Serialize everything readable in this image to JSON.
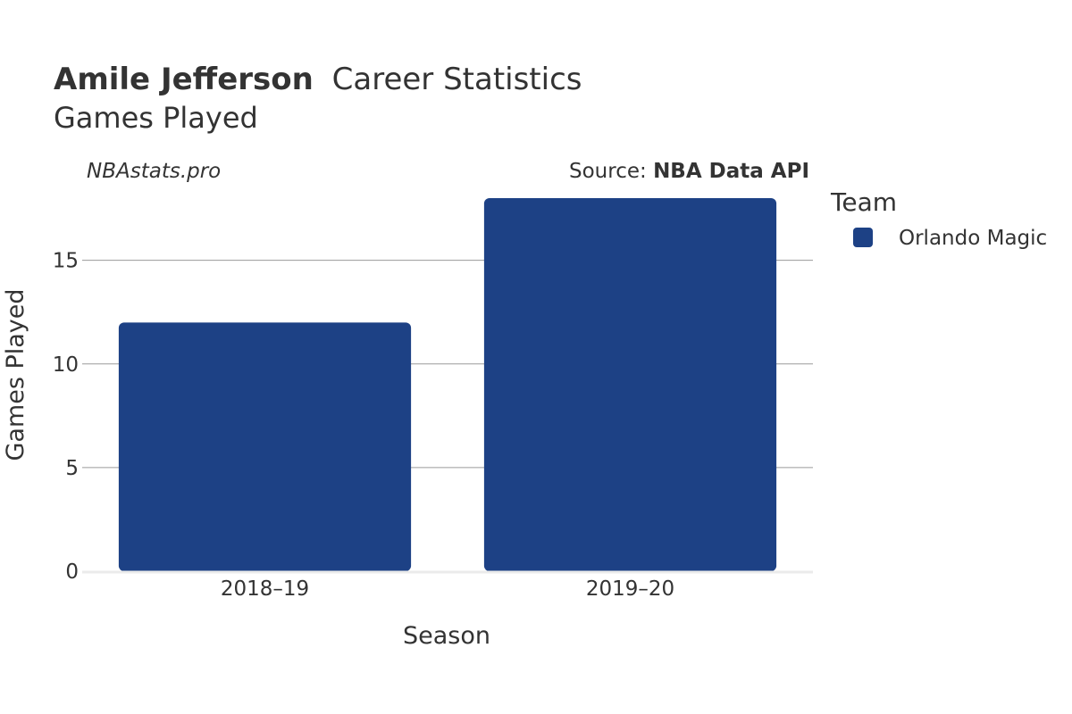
{
  "title": {
    "player": "Amile Jefferson",
    "suffix": "Career Statistics",
    "subtitle": "Games Played"
  },
  "watermark": "NBAstats.pro",
  "source": {
    "prefix": "Source: ",
    "name": "NBA Data API"
  },
  "legend": {
    "title": "Team",
    "items": [
      {
        "label": "Orlando Magic",
        "color": "#1d4185"
      }
    ]
  },
  "chart_data": {
    "type": "bar",
    "categories": [
      "2018–19",
      "2019–20"
    ],
    "series": [
      {
        "name": "Orlando Magic",
        "values": [
          12,
          18
        ],
        "color": "#1d4185"
      }
    ],
    "xlabel": "Season",
    "ylabel": "Games Played",
    "ylim": [
      0,
      18
    ],
    "yticks": [
      0,
      5,
      10,
      15
    ],
    "grid": true,
    "legend_position": "right"
  }
}
